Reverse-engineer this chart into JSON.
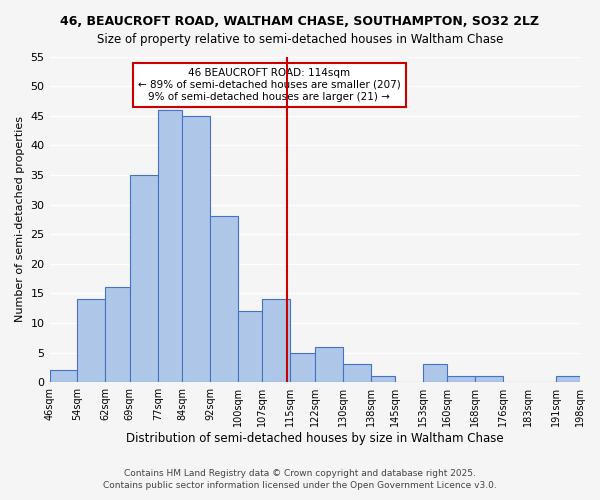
{
  "title1": "46, BEAUCROFT ROAD, WALTHAM CHASE, SOUTHAMPTON, SO32 2LZ",
  "title2": "Size of property relative to semi-detached houses in Waltham Chase",
  "xlabel": "Distribution of semi-detached houses by size in Waltham Chase",
  "ylabel": "Number of semi-detached properties",
  "bin_edges": [
    46,
    54,
    62,
    69,
    77,
    84,
    92,
    100,
    107,
    115,
    122,
    130,
    138,
    145,
    153,
    160,
    168,
    176,
    183,
    191,
    198
  ],
  "counts": [
    2,
    14,
    16,
    35,
    46,
    45,
    28,
    12,
    14,
    5,
    6,
    3,
    1,
    0,
    3,
    1,
    1,
    0,
    0,
    1
  ],
  "tick_labels": [
    "46sqm",
    "54sqm",
    "62sqm",
    "69sqm",
    "77sqm",
    "84sqm",
    "92sqm",
    "100sqm",
    "107sqm",
    "115sqm",
    "122sqm",
    "130sqm",
    "138sqm",
    "145sqm",
    "153sqm",
    "160sqm",
    "168sqm",
    "176sqm",
    "183sqm",
    "191sqm",
    "198sqm"
  ],
  "bar_color": "#aec6e8",
  "bar_edge_color": "#4472c4",
  "vline_x": 114,
  "vline_color": "#cc0000",
  "annotation_title": "46 BEAUCROFT ROAD: 114sqm",
  "annotation_line1": "← 89% of semi-detached houses are smaller (207)",
  "annotation_line2": "9% of semi-detached houses are larger (21) →",
  "annotation_box_edge": "#cc0000",
  "ylim": [
    0,
    55
  ],
  "yticks": [
    0,
    5,
    10,
    15,
    20,
    25,
    30,
    35,
    40,
    45,
    50,
    55
  ],
  "background_color": "#f5f5f5",
  "grid_color": "#ffffff",
  "footnote1": "Contains HM Land Registry data © Crown copyright and database right 2025.",
  "footnote2": "Contains public sector information licensed under the Open Government Licence v3.0."
}
